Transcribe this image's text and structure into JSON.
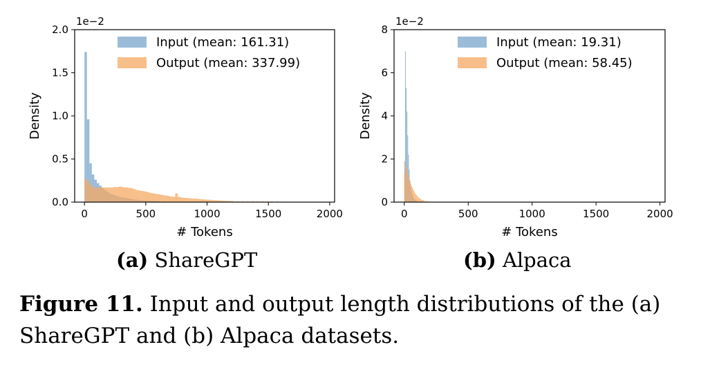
{
  "chart_data": [
    {
      "type": "histogram",
      "panel_label": "(a)",
      "caption": "ShareGPT",
      "xlabel": "# Tokens",
      "ylabel": "Density",
      "y_scale_note": "1e−2",
      "xlim": [
        -80,
        2040
      ],
      "ylim": [
        0,
        2.0
      ],
      "xticks": [
        "0",
        "500",
        "1000",
        "1500",
        "2000"
      ],
      "yticks": [
        "0.0",
        "0.5",
        "1.0",
        "1.5",
        "2.0"
      ],
      "legend_position": "top-right",
      "bin_width": 20,
      "series": [
        {
          "name": "Input (mean: 161.31)",
          "color": "#7aa6cc",
          "bins": [
            [
              0,
              1.74
            ],
            [
              20,
              0.96
            ],
            [
              40,
              0.45
            ],
            [
              60,
              0.32
            ],
            [
              80,
              0.26
            ],
            [
              100,
              0.22
            ],
            [
              120,
              0.19
            ],
            [
              140,
              0.16
            ],
            [
              160,
              0.14
            ],
            [
              180,
              0.12
            ],
            [
              200,
              0.1
            ],
            [
              220,
              0.09
            ],
            [
              240,
              0.08
            ],
            [
              260,
              0.07
            ],
            [
              280,
              0.06
            ],
            [
              300,
              0.055
            ],
            [
              320,
              0.05
            ],
            [
              340,
              0.045
            ],
            [
              360,
              0.04
            ],
            [
              380,
              0.035
            ],
            [
              400,
              0.03
            ],
            [
              420,
              0.028
            ],
            [
              440,
              0.025
            ],
            [
              460,
              0.022
            ],
            [
              480,
              0.02
            ],
            [
              500,
              0.018
            ],
            [
              520,
              0.016
            ],
            [
              540,
              0.014
            ],
            [
              560,
              0.013
            ],
            [
              580,
              0.012
            ],
            [
              600,
              0.011
            ],
            [
              640,
              0.009
            ],
            [
              680,
              0.008
            ],
            [
              720,
              0.007
            ],
            [
              760,
              0.006
            ],
            [
              800,
              0.005
            ],
            [
              860,
              0.004
            ],
            [
              920,
              0.003
            ],
            [
              1000,
              0.003
            ],
            [
              1100,
              0.002
            ],
            [
              1200,
              0.002
            ]
          ]
        },
        {
          "name": "Output (mean: 337.99)",
          "color": "#f4a862",
          "bins": [
            [
              0,
              0.27
            ],
            [
              20,
              0.24
            ],
            [
              40,
              0.2
            ],
            [
              60,
              0.18
            ],
            [
              80,
              0.16
            ],
            [
              100,
              0.17
            ],
            [
              120,
              0.17
            ],
            [
              140,
              0.17
            ],
            [
              160,
              0.17
            ],
            [
              180,
              0.17
            ],
            [
              200,
              0.17
            ],
            [
              220,
              0.17
            ],
            [
              240,
              0.175
            ],
            [
              260,
              0.175
            ],
            [
              280,
              0.18
            ],
            [
              300,
              0.175
            ],
            [
              320,
              0.17
            ],
            [
              340,
              0.17
            ],
            [
              360,
              0.165
            ],
            [
              380,
              0.16
            ],
            [
              400,
              0.15
            ],
            [
              420,
              0.14
            ],
            [
              440,
              0.135
            ],
            [
              460,
              0.13
            ],
            [
              480,
              0.125
            ],
            [
              500,
              0.12
            ],
            [
              520,
              0.11
            ],
            [
              540,
              0.105
            ],
            [
              560,
              0.1
            ],
            [
              580,
              0.095
            ],
            [
              600,
              0.09
            ],
            [
              620,
              0.085
            ],
            [
              640,
              0.08
            ],
            [
              660,
              0.075
            ],
            [
              680,
              0.07
            ],
            [
              700,
              0.065
            ],
            [
              720,
              0.062
            ],
            [
              740,
              0.1
            ],
            [
              760,
              0.06
            ],
            [
              780,
              0.055
            ],
            [
              800,
              0.05
            ],
            [
              820,
              0.048
            ],
            [
              840,
              0.046
            ],
            [
              860,
              0.044
            ],
            [
              880,
              0.042
            ],
            [
              900,
              0.04
            ],
            [
              920,
              0.037
            ],
            [
              940,
              0.034
            ],
            [
              960,
              0.032
            ],
            [
              980,
              0.03
            ],
            [
              1000,
              0.028
            ],
            [
              1020,
              0.026
            ],
            [
              1040,
              0.024
            ],
            [
              1060,
              0.022
            ],
            [
              1080,
              0.02
            ],
            [
              1100,
              0.018
            ],
            [
              1120,
              0.016
            ],
            [
              1140,
              0.015
            ],
            [
              1160,
              0.014
            ],
            [
              1180,
              0.013
            ],
            [
              1200,
              0.012
            ],
            [
              1240,
              0.011
            ],
            [
              1280,
              0.01
            ],
            [
              1320,
              0.009
            ],
            [
              1360,
              0.008
            ],
            [
              1400,
              0.008
            ],
            [
              1440,
              0.007
            ],
            [
              1480,
              0.007
            ],
            [
              1520,
              0.006
            ],
            [
              1560,
              0.006
            ],
            [
              1600,
              0.005
            ],
            [
              1640,
              0.005
            ],
            [
              1680,
              0.004
            ],
            [
              1720,
              0.004
            ],
            [
              1760,
              0.004
            ],
            [
              1800,
              0.003
            ],
            [
              1840,
              0.003
            ],
            [
              1880,
              0.003
            ],
            [
              1920,
              0.002
            ],
            [
              1960,
              0.002
            ]
          ]
        }
      ]
    },
    {
      "type": "histogram",
      "panel_label": "(b)",
      "caption": "Alpaca",
      "xlabel": "# Tokens",
      "ylabel": "Density",
      "y_scale_note": "1e−2",
      "xlim": [
        -80,
        2040
      ],
      "ylim": [
        0,
        8
      ],
      "xticks": [
        "0",
        "500",
        "1000",
        "1500",
        "2000"
      ],
      "yticks": [
        "0",
        "2",
        "4",
        "6",
        "8"
      ],
      "legend_position": "top-right",
      "bin_width": 6,
      "series": [
        {
          "name": "Input (mean: 19.31)",
          "color": "#7aa6cc",
          "bins": [
            [
              0,
              1.9
            ],
            [
              6,
              7.0
            ],
            [
              12,
              5.3
            ],
            [
              18,
              4.2
            ],
            [
              24,
              3.1
            ],
            [
              30,
              2.2
            ],
            [
              36,
              1.5
            ],
            [
              42,
              1.0
            ],
            [
              48,
              0.7
            ],
            [
              54,
              0.5
            ],
            [
              60,
              0.35
            ],
            [
              66,
              0.25
            ],
            [
              72,
              0.18
            ],
            [
              78,
              0.13
            ],
            [
              84,
              0.09
            ],
            [
              90,
              0.06
            ],
            [
              96,
              0.04
            ],
            [
              102,
              0.03
            ],
            [
              108,
              0.02
            ],
            [
              120,
              0.015
            ],
            [
              140,
              0.01
            ],
            [
              160,
              0.006
            ]
          ]
        },
        {
          "name": "Output (mean: 58.45)",
          "color": "#f4a862",
          "bins": [
            [
              0,
              1.3
            ],
            [
              6,
              1.9
            ],
            [
              12,
              1.7
            ],
            [
              18,
              1.55
            ],
            [
              24,
              1.35
            ],
            [
              30,
              1.2
            ],
            [
              36,
              1.05
            ],
            [
              42,
              0.95
            ],
            [
              48,
              0.85
            ],
            [
              54,
              0.75
            ],
            [
              60,
              0.68
            ],
            [
              66,
              0.6
            ],
            [
              72,
              0.52
            ],
            [
              78,
              0.46
            ],
            [
              84,
              0.4
            ],
            [
              90,
              0.35
            ],
            [
              96,
              0.3
            ],
            [
              102,
              0.26
            ],
            [
              108,
              0.22
            ],
            [
              114,
              0.19
            ],
            [
              120,
              0.16
            ],
            [
              126,
              0.14
            ],
            [
              132,
              0.12
            ],
            [
              138,
              0.1
            ],
            [
              144,
              0.09
            ],
            [
              150,
              0.08
            ],
            [
              162,
              0.06
            ],
            [
              174,
              0.045
            ],
            [
              186,
              0.035
            ],
            [
              198,
              0.025
            ],
            [
              210,
              0.018
            ],
            [
              230,
              0.012
            ],
            [
              250,
              0.008
            ],
            [
              270,
              0.005
            ],
            [
              290,
              0.003
            ]
          ]
        }
      ]
    }
  ],
  "figure_caption": {
    "label": "Figure 11.",
    "text": "Input and output length distributions of the (a) ShareGPT and (b) Alpaca datasets."
  }
}
